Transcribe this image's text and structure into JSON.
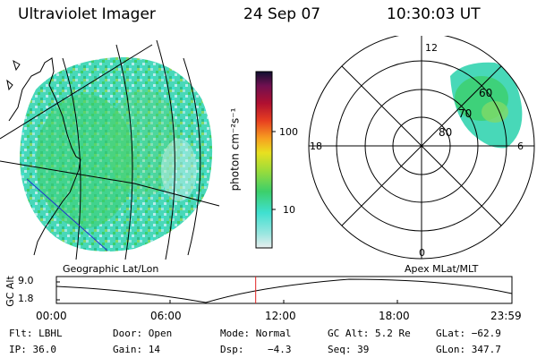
{
  "header": {
    "title": "Ultraviolet Imager",
    "date": "24 Sep 07",
    "time": "10:30:03 UT"
  },
  "colorbar": {
    "unit_label": "photon cm⁻²s⁻¹",
    "ticks": [
      "100",
      "10"
    ]
  },
  "polar_plot": {
    "mlt_labels": [
      "12",
      "18",
      "6",
      "0"
    ],
    "lat_labels": [
      "60",
      "70",
      "80"
    ]
  },
  "map_labels": {
    "left": "Geographic Lat/Lon",
    "right": "Apex MLat/MLT"
  },
  "timeline": {
    "axis_label": "GC Alt",
    "y_ticks": [
      "9.0",
      "1.8"
    ],
    "x_ticks": [
      "00:00",
      "06:00",
      "12:00",
      "18:00",
      "23:59"
    ],
    "current_time_fraction": 0.4375
  },
  "status": {
    "row1": {
      "flt": "Flt: LBHL",
      "door": "Door: Open",
      "mode": "Mode: Normal",
      "gcalt": "GC Alt: 5.2 Re",
      "glat": "GLat: −62.9"
    },
    "row2": {
      "ip": "IP: 36.0",
      "gain": "Gain: 14",
      "dsp": "Dsp:    −4.3",
      "seq": "Seq: 39",
      "glon": "GLon: 347.7"
    }
  },
  "colors": {
    "aurora_main": "#3ccf6a",
    "aurora_cyan": "#3fe0d0",
    "aurora_light": "#9be6e0",
    "red_marker": "#e02020",
    "blue_line": "#2233cc"
  }
}
